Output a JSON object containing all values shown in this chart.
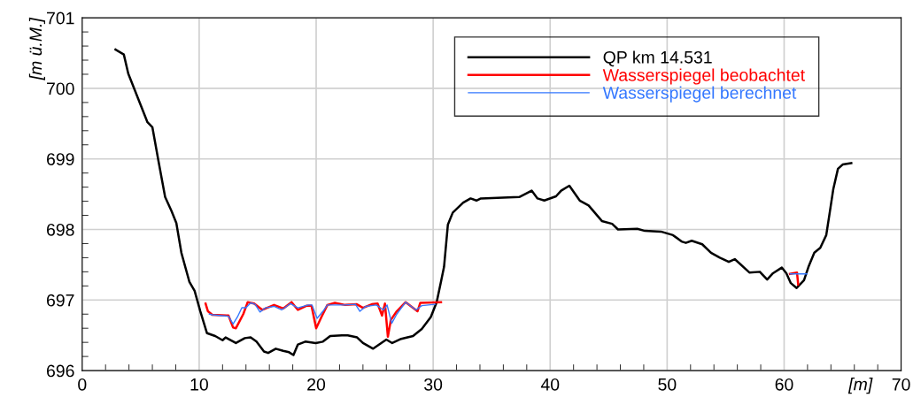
{
  "chart_data": {
    "type": "line",
    "xlabel": "[m]",
    "ylabel": "[m ü.M.]",
    "xlim": [
      0,
      70
    ],
    "ylim": [
      696,
      701
    ],
    "xticks": [
      0,
      {
        "value": 2,
        "label": null
      },
      {
        "value": 4,
        "label": null
      },
      {
        "value": 6,
        "label": null
      },
      {
        "value": 8,
        "label": null
      },
      10,
      {
        "value": 12,
        "label": null
      },
      {
        "value": 14,
        "label": null
      },
      {
        "value": 16,
        "label": null
      },
      {
        "value": 18,
        "label": null
      },
      20,
      {
        "value": 22,
        "label": null
      },
      {
        "value": 24,
        "label": null
      },
      {
        "value": 26,
        "label": null
      },
      {
        "value": 28,
        "label": null
      },
      30,
      {
        "value": 32,
        "label": null
      },
      {
        "value": 34,
        "label": null
      },
      {
        "value": 36,
        "label": null
      },
      {
        "value": 38,
        "label": null
      },
      40,
      {
        "value": 42,
        "label": null
      },
      {
        "value": 44,
        "label": null
      },
      {
        "value": 46,
        "label": null
      },
      {
        "value": 48,
        "label": null
      },
      50,
      {
        "value": 52,
        "label": null
      },
      {
        "value": 54,
        "label": null
      },
      {
        "value": 56,
        "label": null
      },
      {
        "value": 58,
        "label": null
      },
      60,
      {
        "value": 62,
        "label": null
      },
      {
        "value": 64,
        "label": null
      },
      {
        "value": 66,
        "label": null
      },
      {
        "value": 68,
        "label": null
      },
      70
    ],
    "yticks": [
      696,
      {
        "value": 696.2,
        "label": null
      },
      {
        "value": 696.4,
        "label": null
      },
      {
        "value": 696.6,
        "label": null
      },
      {
        "value": 696.8,
        "label": null
      },
      697,
      {
        "value": 697.2,
        "label": null
      },
      {
        "value": 697.4,
        "label": null
      },
      {
        "value": 697.6,
        "label": null
      },
      {
        "value": 697.8,
        "label": null
      },
      698,
      {
        "value": 698.2,
        "label": null
      },
      {
        "value": 698.4,
        "label": null
      },
      {
        "value": 698.6,
        "label": null
      },
      {
        "value": 698.8,
        "label": null
      },
      699,
      {
        "value": 699.2,
        "label": null
      },
      {
        "value": 699.4,
        "label": null
      },
      {
        "value": 699.6,
        "label": null
      },
      {
        "value": 699.8,
        "label": null
      },
      700,
      {
        "value": 700.2,
        "label": null
      },
      {
        "value": 700.4,
        "label": null
      },
      {
        "value": 700.6,
        "label": null
      },
      {
        "value": 700.8,
        "label": null
      },
      701
    ],
    "grid": true,
    "legend": "top right",
    "line_style": "solid",
    "marker": "none",
    "series": [
      {
        "name": "QP km 14.531",
        "color": "#000000",
        "x": [
          2.85,
          3.56,
          3.94,
          4.94,
          5.58,
          6.0,
          6.51,
          7.09,
          7.64,
          8.05,
          8.48,
          9.16,
          9.61,
          10.1,
          10.67,
          11.37,
          12.0,
          12.26,
          13.14,
          13.9,
          14.4,
          14.9,
          15.54,
          15.9,
          16.55,
          17.18,
          17.68,
          18.06,
          18.44,
          19.07,
          19.96,
          20.58,
          21.2,
          22.2,
          22.7,
          23.5,
          24.0,
          24.87,
          26.0,
          26.5,
          27.27,
          28.28,
          29.03,
          29.8,
          30.3,
          30.67,
          30.93,
          31.26,
          31.68,
          32.57,
          33.2,
          33.7,
          34.08,
          37.36,
          38.42,
          38.92,
          39.5,
          40.5,
          40.94,
          41.64,
          42.53,
          43.29,
          44.42,
          45.3,
          45.8,
          47.45,
          48.1,
          49.47,
          50.5,
          51.23,
          51.6,
          52.1,
          53.0,
          53.75,
          54.5,
          55.27,
          55.78,
          57.03,
          57.92,
          58.55,
          59.05,
          59.8,
          60.19,
          60.57,
          61.07,
          61.7,
          62.08,
          62.58,
          63.09,
          63.6,
          63.85,
          64.2,
          64.6,
          65.0,
          65.74
        ],
        "values": [
          700.55,
          700.48,
          700.21,
          699.79,
          699.52,
          699.45,
          698.98,
          698.46,
          698.26,
          698.09,
          697.67,
          697.26,
          697.13,
          696.84,
          696.53,
          696.49,
          696.43,
          696.47,
          696.39,
          696.46,
          696.47,
          696.41,
          696.27,
          696.25,
          696.31,
          696.28,
          696.26,
          696.22,
          696.37,
          696.41,
          696.39,
          696.41,
          696.49,
          696.5,
          696.5,
          696.47,
          696.39,
          696.31,
          696.44,
          696.39,
          696.45,
          696.49,
          696.59,
          696.76,
          696.97,
          697.26,
          697.47,
          698.07,
          698.24,
          698.38,
          698.44,
          698.41,
          698.44,
          698.46,
          698.55,
          698.44,
          698.41,
          698.47,
          698.55,
          698.62,
          698.41,
          698.34,
          698.12,
          698.08,
          698.0,
          698.01,
          697.98,
          697.97,
          697.92,
          697.83,
          697.81,
          697.84,
          697.79,
          697.67,
          697.6,
          697.54,
          697.58,
          697.39,
          697.4,
          697.29,
          697.38,
          697.46,
          697.38,
          697.24,
          697.17,
          697.28,
          697.47,
          697.67,
          697.74,
          697.92,
          698.19,
          698.57,
          698.86,
          698.92,
          698.94
        ]
      },
      {
        "name": "Wasserspiegel beobachtet",
        "color": "#ff0000",
        "x": [
          10.55,
          10.75,
          11.12,
          12.51,
          12.9,
          13.14,
          13.77,
          14.15,
          14.7,
          15.4,
          16.4,
          17.2,
          17.9,
          18.44,
          19.2,
          19.6,
          20.0,
          20.45,
          20.96,
          21.6,
          22.48,
          23.48,
          24.0,
          24.75,
          25.25,
          25.63,
          25.88,
          26.13,
          26.39,
          26.89,
          27.65,
          28.66,
          28.9,
          30.67,
          45.0,
          60.5,
          61.1,
          61.2
        ],
        "values": [
          696.95,
          696.84,
          696.79,
          696.78,
          696.61,
          696.6,
          696.8,
          696.97,
          696.95,
          696.86,
          696.93,
          696.88,
          696.97,
          696.86,
          696.92,
          696.92,
          696.6,
          696.76,
          696.93,
          696.96,
          696.93,
          696.94,
          696.89,
          696.94,
          696.95,
          696.78,
          696.95,
          696.48,
          696.72,
          696.84,
          696.97,
          696.84,
          696.96,
          696.97,
          null,
          697.37,
          697.39,
          697.22
        ]
      },
      {
        "name": "Wasserspiegel berechnet",
        "color": "#3377ff",
        "x": [
          10.87,
          11.12,
          12.51,
          12.9,
          13.27,
          13.65,
          14.0,
          14.4,
          14.78,
          15.2,
          15.67,
          16.4,
          17.05,
          17.8,
          18.44,
          19.32,
          19.65,
          20.08,
          20.58,
          20.96,
          22.48,
          23.36,
          23.74,
          24.24,
          25.13,
          25.76,
          26.06,
          26.46,
          26.89,
          27.65,
          28.53,
          29.03,
          30.17,
          45.0,
          60.52,
          61.95
        ],
        "values": [
          696.8,
          696.79,
          696.77,
          696.66,
          696.76,
          696.89,
          696.89,
          696.96,
          696.94,
          696.83,
          696.89,
          696.91,
          696.86,
          696.95,
          696.89,
          696.93,
          696.93,
          696.74,
          696.84,
          696.93,
          696.93,
          696.94,
          696.84,
          696.91,
          696.93,
          696.86,
          696.93,
          696.67,
          696.8,
          696.97,
          696.86,
          696.92,
          696.94,
          null,
          697.37,
          697.37
        ]
      }
    ]
  }
}
